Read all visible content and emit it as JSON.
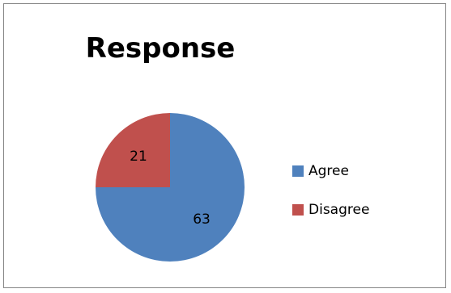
{
  "chart_data": {
    "type": "pie",
    "title": "Response",
    "categories": [
      "Agree",
      "Disagree"
    ],
    "values": [
      63,
      21
    ],
    "colors": [
      "#4f81bd",
      "#c0504d"
    ],
    "data_labels": [
      "63",
      "21"
    ],
    "legend_position": "right",
    "start_angle": "top, clockwise"
  }
}
